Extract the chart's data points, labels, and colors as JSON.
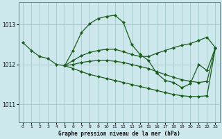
{
  "title": "Graphe pression niveau de la mer (hPa)",
  "background_color": "#cce8ec",
  "grid_color": "#aacccc",
  "line_color": "#1a5c1a",
  "marker_color": "#1a5c1a",
  "xlim": [
    -0.5,
    23.5
  ],
  "ylim": [
    1010.55,
    1013.55
  ],
  "yticks": [
    1011,
    1012,
    1013
  ],
  "xtick_labels": [
    "0",
    "1",
    "2",
    "3",
    "4",
    "5",
    "6",
    "7",
    "8",
    "9",
    "10",
    "11",
    "12",
    "13",
    "14",
    "15",
    "16",
    "17",
    "18",
    "19",
    "20",
    "21",
    "22",
    "23"
  ],
  "series": [
    {
      "x": [
        0,
        1,
        2,
        3,
        4,
        5,
        6,
        7,
        8,
        9,
        10,
        11,
        12,
        13,
        14,
        15,
        16,
        17,
        18,
        19,
        20,
        21,
        22,
        23
      ],
      "y": [
        1012.55,
        1012.35,
        1012.2,
        1012.15,
        1012.0,
        1011.97,
        1012.35,
        1012.8,
        1013.02,
        1013.15,
        1013.2,
        1013.23,
        1013.05,
        1012.5,
        1012.25,
        1012.1,
        1011.78,
        1011.6,
        1011.55,
        1011.42,
        1011.52,
        1012.0,
        1011.85,
        1012.42
      ]
    },
    {
      "x": [
        5,
        6,
        7,
        8,
        9,
        10,
        11,
        12,
        13,
        14,
        15,
        16,
        17,
        18,
        19,
        20,
        21,
        22,
        23
      ],
      "y": [
        1011.97,
        1012.1,
        1012.22,
        1012.3,
        1012.35,
        1012.38,
        1012.38,
        1012.32,
        1012.25,
        1012.2,
        1012.2,
        1012.28,
        1012.35,
        1012.42,
        1012.48,
        1012.52,
        1012.6,
        1012.68,
        1012.42
      ]
    },
    {
      "x": [
        5,
        6,
        7,
        8,
        9,
        10,
        11,
        12,
        13,
        14,
        15,
        16,
        17,
        18,
        19,
        20,
        21,
        22,
        23
      ],
      "y": [
        1011.97,
        1012.0,
        1012.05,
        1012.08,
        1012.1,
        1012.1,
        1012.08,
        1012.05,
        1012.0,
        1011.95,
        1011.9,
        1011.82,
        1011.75,
        1011.68,
        1011.62,
        1011.58,
        1011.55,
        1011.58,
        1012.42
      ]
    },
    {
      "x": [
        5,
        6,
        7,
        8,
        9,
        10,
        11,
        12,
        13,
        14,
        15,
        16,
        17,
        18,
        19,
        20,
        21,
        22,
        23
      ],
      "y": [
        1011.97,
        1011.9,
        1011.82,
        1011.75,
        1011.7,
        1011.65,
        1011.6,
        1011.55,
        1011.5,
        1011.45,
        1011.4,
        1011.35,
        1011.3,
        1011.25,
        1011.22,
        1011.2,
        1011.2,
        1011.22,
        1012.42
      ]
    }
  ]
}
